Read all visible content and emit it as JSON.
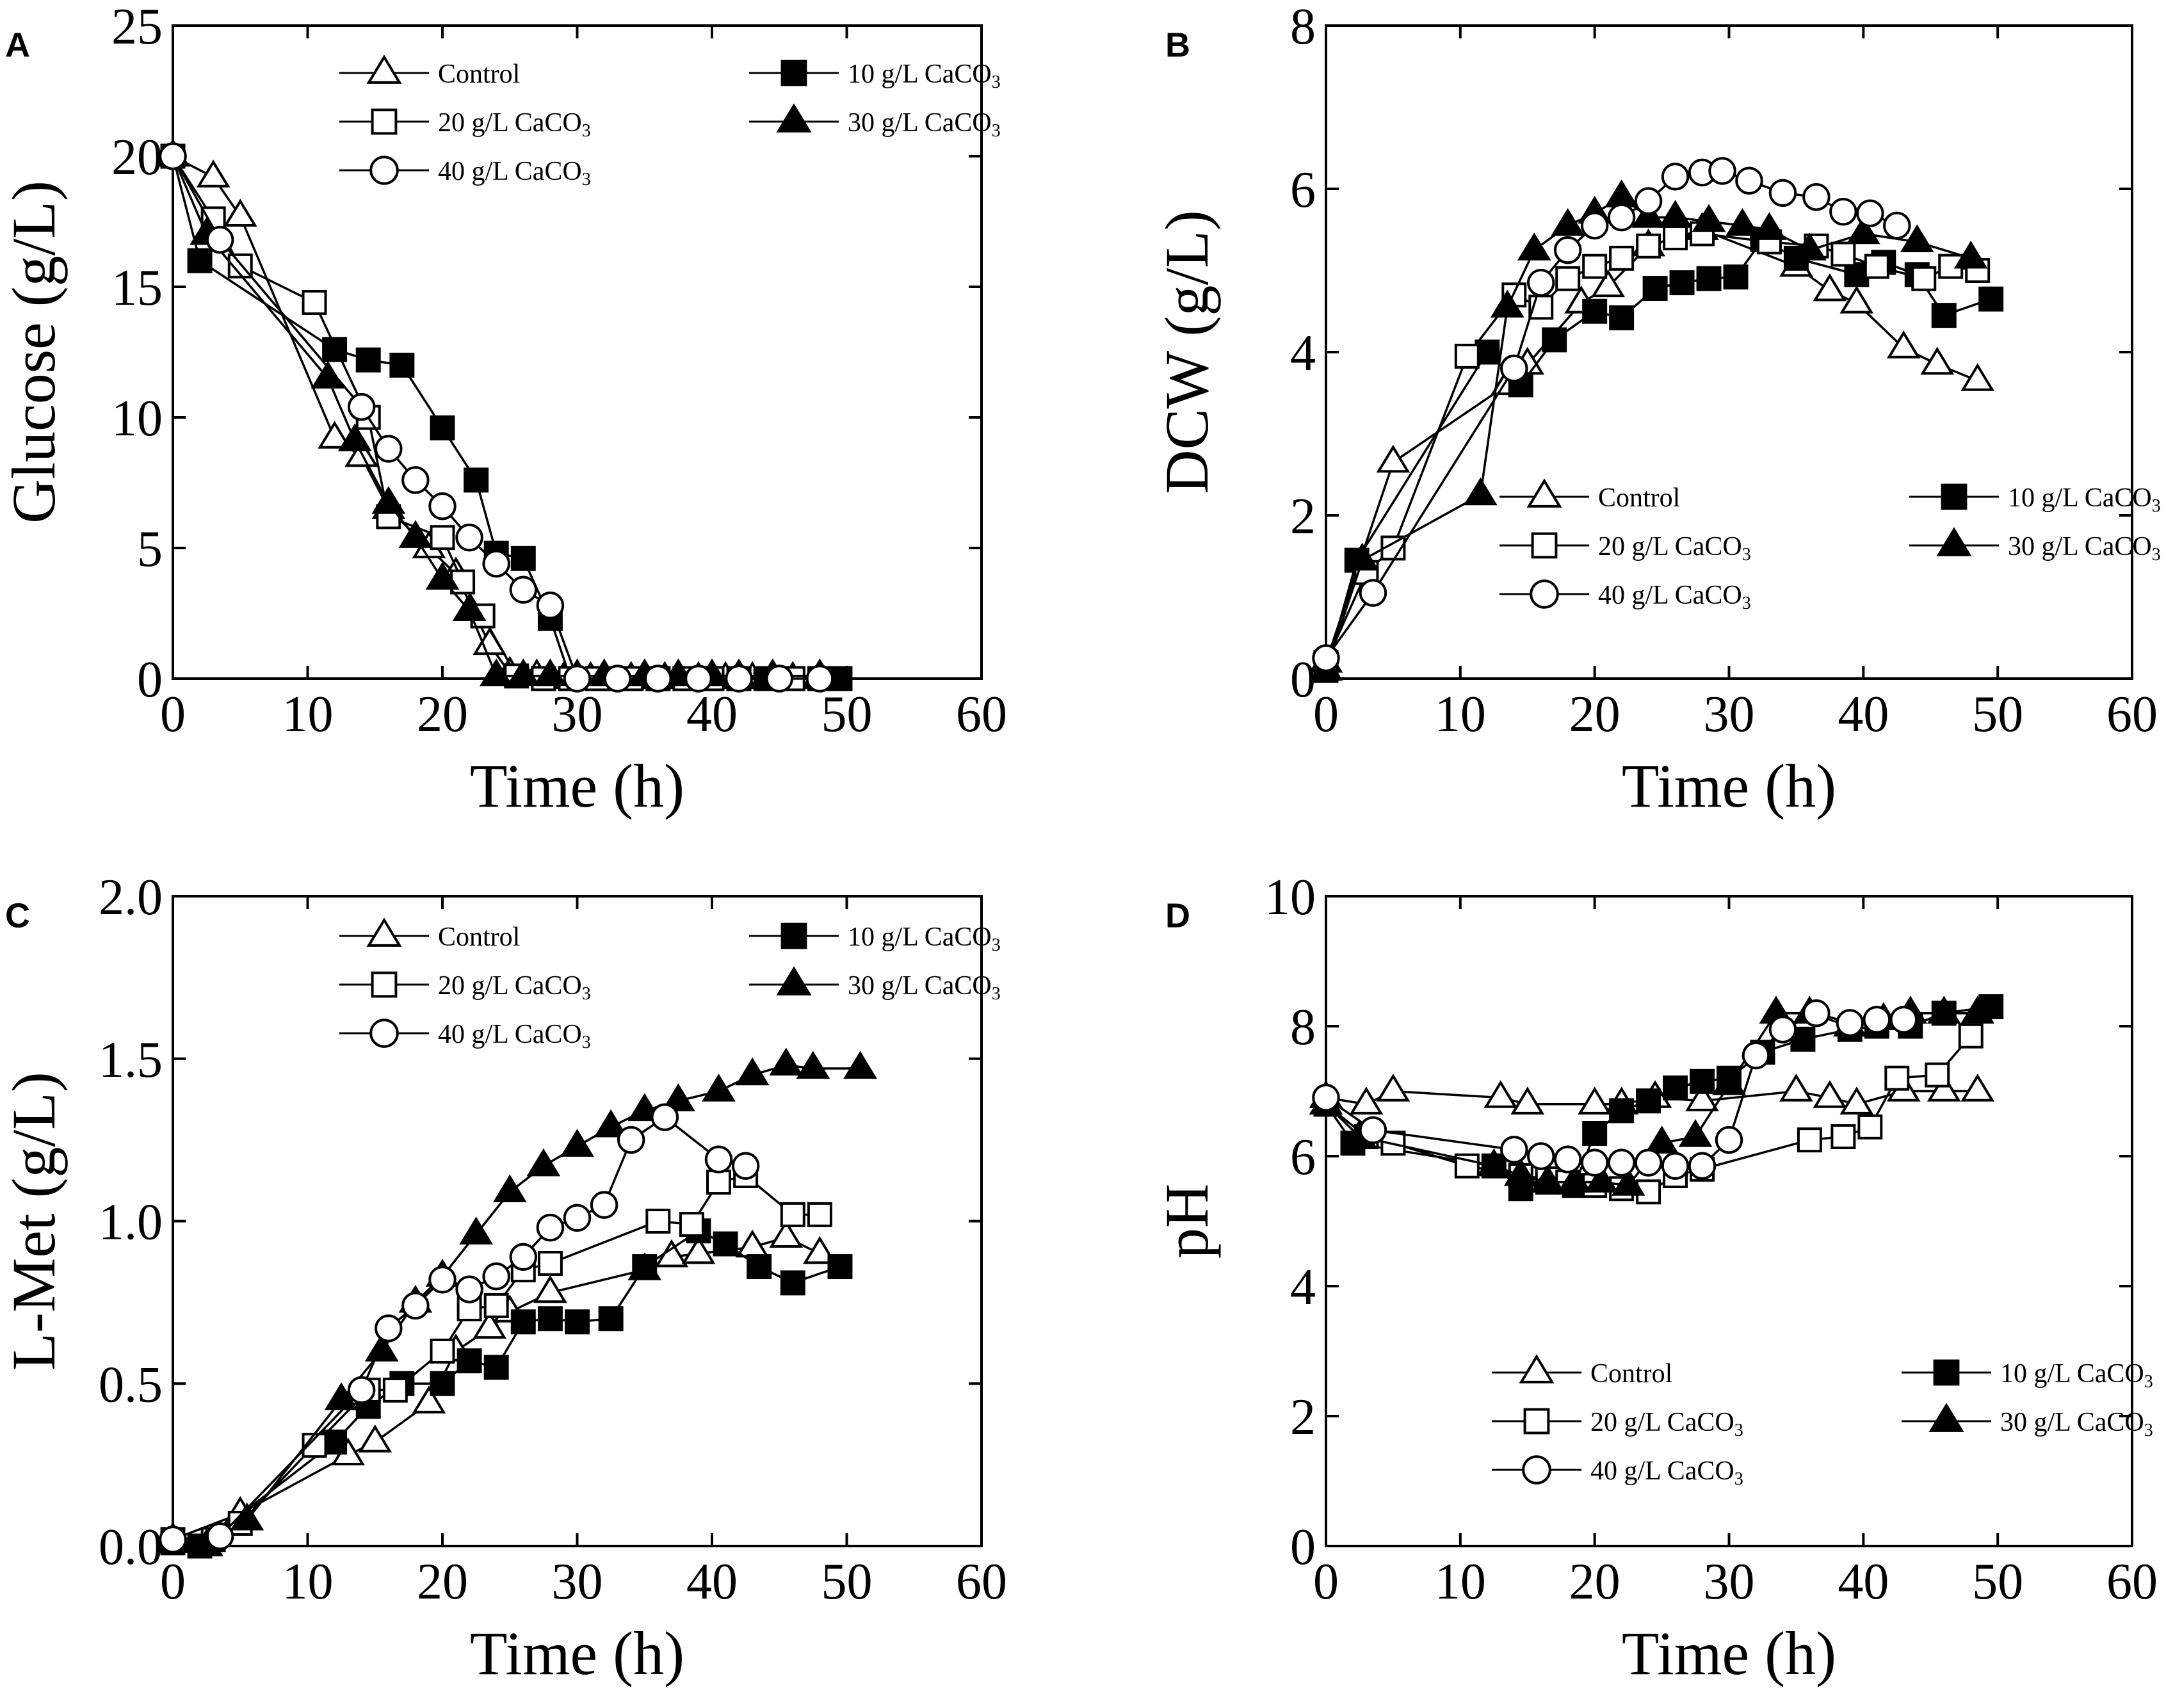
{
  "figure": {
    "series_defs": [
      {
        "key": "control",
        "label": "Control",
        "marker": "triangle",
        "fill": "#ffffff"
      },
      {
        "key": "c10",
        "label": "10 g/L CaCO",
        "subscript": "3",
        "marker": "square",
        "fill": "#000000"
      },
      {
        "key": "c20",
        "label": "20 g/L CaCO",
        "subscript": "3",
        "marker": "square",
        "fill": "#ffffff"
      },
      {
        "key": "c30",
        "label": "30 g/L CaCO",
        "subscript": "3",
        "marker": "triangle",
        "fill": "#000000"
      },
      {
        "key": "c40",
        "label": "40 g/L CaCO",
        "subscript": "3",
        "marker": "circle",
        "fill": "#ffffff"
      }
    ]
  },
  "chart_data": [
    {
      "panel": "A",
      "type": "line",
      "xlabel": "Time (h)",
      "ylabel": "Glucose (g/L)",
      "xlim": [
        0,
        60
      ],
      "ylim": [
        0,
        25
      ],
      "xticks": [
        0,
        10,
        20,
        30,
        40,
        50,
        60
      ],
      "yticks": [
        0,
        5,
        10,
        15,
        20,
        25
      ],
      "legend_position": "top-right",
      "series": [
        {
          "key": "control",
          "name": "Control",
          "x": [
            0,
            3,
            5,
            12,
            14,
            16,
            19,
            21,
            23.5,
            25,
            27,
            29,
            31,
            34,
            36.5,
            39,
            41,
            43,
            46,
            48
          ],
          "y": [
            20,
            19.2,
            17.7,
            9.2,
            8.5,
            6.5,
            5,
            4,
            1.3,
            0.2,
            0.1,
            0,
            0,
            0,
            0,
            0,
            0,
            0,
            0,
            0
          ]
        },
        {
          "key": "c10",
          "name": "10 g/L CaCO3",
          "x": [
            0,
            2,
            12,
            14.5,
            17,
            20,
            22.5,
            24,
            26,
            28,
            29.5,
            32,
            34,
            36,
            38,
            40,
            42,
            44,
            46,
            49.5
          ],
          "y": [
            20,
            16,
            12.6,
            12.2,
            12,
            9.6,
            7.6,
            4.8,
            4.6,
            2.3,
            0,
            0,
            0,
            0,
            0,
            0,
            0,
            0,
            0,
            0
          ]
        },
        {
          "key": "c20",
          "name": "20 g/L CaCO3",
          "x": [
            0,
            3,
            5,
            10.5,
            14.5,
            16,
            20,
            21.5,
            23,
            25.5,
            27.5,
            29.5,
            31.5,
            34,
            36,
            38,
            40,
            42,
            46,
            48
          ],
          "y": [
            20,
            17.6,
            15.8,
            14.4,
            10,
            6.2,
            5.4,
            3.7,
            2.4,
            0.1,
            0,
            0,
            0,
            0,
            0,
            0,
            0,
            0,
            0,
            0
          ]
        },
        {
          "key": "c30",
          "name": "30 g/L CaCO3",
          "x": [
            0,
            2.5,
            11.5,
            13.5,
            16,
            18,
            20,
            22,
            24,
            26,
            28,
            30,
            32,
            35,
            37.5,
            40,
            42,
            44.5,
            48
          ],
          "y": [
            20,
            17,
            11.5,
            9.1,
            6.7,
            5.4,
            3.8,
            2.6,
            0.1,
            0.1,
            0.1,
            0.1,
            0.1,
            0.1,
            0.1,
            0.1,
            0.1,
            0.1,
            0.1
          ]
        },
        {
          "key": "c40",
          "name": "40 g/L CaCO3",
          "x": [
            0,
            3.5,
            14,
            16,
            18,
            20,
            22,
            24,
            26,
            28,
            30,
            33,
            36,
            39,
            42,
            45,
            48
          ],
          "y": [
            20,
            16.8,
            10.4,
            8.8,
            7.6,
            6.6,
            5.4,
            4.4,
            3.4,
            2.8,
            0,
            0,
            0,
            0,
            0,
            0,
            0
          ]
        }
      ]
    },
    {
      "panel": "B",
      "type": "line",
      "xlabel": "Time (h)",
      "ylabel": "DCW (g/L)",
      "xlim": [
        0,
        60
      ],
      "ylim": [
        0,
        8
      ],
      "xticks": [
        0,
        10,
        20,
        30,
        40,
        50,
        60
      ],
      "yticks": [
        0,
        2,
        4,
        6,
        8
      ],
      "legend_position": "bottom-right",
      "series": [
        {
          "key": "control",
          "name": "Control",
          "x": [
            0,
            5,
            13.5,
            15,
            19,
            21,
            24,
            28,
            35,
            37.5,
            39.5,
            43,
            45.5,
            48.5
          ],
          "y": [
            0.2,
            2.65,
            3.6,
            3.85,
            4.6,
            4.8,
            5.3,
            5.5,
            5.05,
            4.75,
            4.6,
            4.05,
            3.85,
            3.65
          ]
        },
        {
          "key": "c10",
          "name": "10 g/L CaCO3",
          "x": [
            0,
            2.3,
            12,
            14.5,
            17,
            20,
            22,
            24.5,
            26.5,
            28.5,
            30.5,
            32.5,
            35,
            39.5,
            41.5,
            44,
            46,
            49.5
          ],
          "y": [
            0.1,
            1.45,
            4,
            3.6,
            4.15,
            4.5,
            4.42,
            4.78,
            4.85,
            4.9,
            4.92,
            5.38,
            5.15,
            4.95,
            5.1,
            4.95,
            4.45,
            4.65
          ]
        },
        {
          "key": "c20",
          "name": "20 g/L CaCO3",
          "x": [
            0,
            3,
            5,
            10.5,
            14,
            16,
            18,
            20,
            22,
            24,
            26,
            28,
            33,
            36.5,
            38.5,
            41,
            44.5,
            46.5,
            48.5
          ],
          "y": [
            0.2,
            1.3,
            1.6,
            3.95,
            4.7,
            4.55,
            4.9,
            5.05,
            5.15,
            5.3,
            5.4,
            5.45,
            5.35,
            5.3,
            5.2,
            5.05,
            4.9,
            5.05,
            5
          ]
        },
        {
          "key": "c30",
          "name": "30 g/L CaCO3",
          "x": [
            0,
            2.7,
            11.5,
            13.5,
            15.5,
            18,
            20,
            22,
            24,
            26,
            28.5,
            31,
            33,
            36,
            40,
            44,
            48
          ],
          "y": [
            0.1,
            1.45,
            2.25,
            4.55,
            5.25,
            5.55,
            5.7,
            5.9,
            5.65,
            5.65,
            5.6,
            5.55,
            5.5,
            5.25,
            5.45,
            5.35,
            5.15
          ]
        },
        {
          "key": "c40",
          "name": "40 g/L CaCO3",
          "x": [
            0,
            3.5,
            14,
            16,
            18,
            20,
            22,
            24,
            26,
            28,
            29.5,
            31.5,
            34,
            36.5,
            38.5,
            40.5,
            42.5
          ],
          "y": [
            0.25,
            1.05,
            3.8,
            4.85,
            5.25,
            5.55,
            5.65,
            5.85,
            6.15,
            6.2,
            6.22,
            6.1,
            5.95,
            5.9,
            5.72,
            5.7,
            5.55
          ]
        }
      ]
    },
    {
      "panel": "C",
      "type": "line",
      "xlabel": "Time (h)",
      "ylabel": "L-Met (g/L)",
      "xlim": [
        0,
        60
      ],
      "ylim": [
        0,
        2.0
      ],
      "xticks": [
        0,
        10,
        20,
        30,
        40,
        50,
        60
      ],
      "yticks": [
        0.0,
        0.5,
        1.0,
        1.5,
        2.0
      ],
      "ytick_labels": [
        "0.0",
        "0.5",
        "1.0",
        "1.5",
        "2.0"
      ],
      "legend_position": "top-right",
      "series": [
        {
          "key": "control",
          "name": "Control",
          "x": [
            0,
            5,
            13,
            15,
            19,
            21,
            23.5,
            25,
            28,
            35,
            37,
            39,
            43,
            45.5,
            48
          ],
          "y": [
            0.02,
            0.1,
            0.28,
            0.32,
            0.44,
            0.6,
            0.67,
            0.72,
            0.78,
            0.85,
            0.89,
            0.9,
            0.92,
            0.95,
            0.9
          ]
        },
        {
          "key": "c10",
          "name": "10 g/L CaCO3",
          "x": [
            0,
            2,
            12,
            14.5,
            17,
            20,
            22,
            24,
            26,
            28,
            30,
            32.5,
            35,
            39,
            41,
            43.5,
            46,
            49.5
          ],
          "y": [
            0.02,
            0,
            0.32,
            0.43,
            0.5,
            0.5,
            0.57,
            0.55,
            0.69,
            0.7,
            0.69,
            0.7,
            0.86,
            0.97,
            0.93,
            0.86,
            0.81,
            0.86
          ]
        },
        {
          "key": "c20",
          "name": "20 g/L CaCO3",
          "x": [
            0,
            3,
            5,
            10.5,
            14.5,
            16.5,
            20,
            22,
            24,
            26,
            28,
            36,
            38.5,
            40.5,
            42.5,
            46,
            48
          ],
          "y": [
            0.01,
            0.02,
            0.07,
            0.31,
            0.48,
            0.48,
            0.6,
            0.73,
            0.74,
            0.85,
            0.87,
            1.0,
            0.99,
            1.12,
            1.14,
            1.02,
            1.02
          ]
        },
        {
          "key": "c30",
          "name": "30 g/L CaCO3",
          "x": [
            0,
            2.5,
            5.5,
            12.5,
            15.5,
            18,
            20,
            22.5,
            25,
            27.5,
            30,
            32.5,
            35,
            37.5,
            40.5,
            43,
            45.5,
            47.5,
            51
          ],
          "y": [
            0.01,
            0,
            0.08,
            0.45,
            0.6,
            0.75,
            0.83,
            0.96,
            1.09,
            1.17,
            1.23,
            1.29,
            1.34,
            1.37,
            1.4,
            1.45,
            1.48,
            1.47,
            1.47
          ]
        },
        {
          "key": "c40",
          "name": "40 g/L CaCO3",
          "x": [
            0,
            3.5,
            14,
            16,
            18,
            20,
            22,
            24,
            26,
            28,
            30,
            32,
            34,
            36.5,
            40.5,
            42.5
          ],
          "y": [
            0.02,
            0.03,
            0.48,
            0.67,
            0.74,
            0.82,
            0.79,
            0.83,
            0.89,
            0.98,
            1.01,
            1.05,
            1.25,
            1.32,
            1.19,
            1.17
          ]
        }
      ]
    },
    {
      "panel": "D",
      "type": "line",
      "xlabel": "Time (h)",
      "ylabel": "pH",
      "xlim": [
        0,
        60
      ],
      "ylim": [
        0,
        10
      ],
      "xticks": [
        0,
        10,
        20,
        30,
        40,
        50,
        60
      ],
      "yticks": [
        0,
        2,
        4,
        6,
        8,
        10
      ],
      "legend_position": "bottom-right",
      "series": [
        {
          "key": "control",
          "name": "Control",
          "x": [
            0,
            3,
            5,
            13,
            15,
            20,
            22,
            24.5,
            28,
            35,
            37.5,
            39.5,
            43,
            46,
            48.5
          ],
          "y": [
            6.9,
            6.8,
            7.0,
            6.9,
            6.8,
            6.8,
            6.8,
            6.9,
            6.85,
            7.0,
            6.9,
            6.8,
            7.0,
            7.0,
            7.0
          ]
        },
        {
          "key": "c10",
          "name": "10 g/L CaCO3",
          "x": [
            0,
            2,
            12.5,
            14.5,
            16.5,
            18.5,
            20,
            22,
            24,
            26,
            28,
            30,
            32.5,
            35.5,
            39,
            41,
            43.5,
            46,
            49.5
          ],
          "y": [
            6.8,
            6.2,
            5.85,
            5.5,
            5.6,
            5.55,
            6.35,
            6.7,
            6.85,
            7.05,
            7.15,
            7.2,
            7.6,
            7.8,
            7.95,
            8.0,
            8.0,
            8.2,
            8.3
          ]
        },
        {
          "key": "c20",
          "name": "20 g/L CaCO3",
          "x": [
            0,
            3,
            5,
            10.5,
            14.5,
            16.5,
            18,
            20,
            22,
            24,
            26,
            28,
            36,
            38.5,
            40.5,
            42.5,
            45.5,
            48
          ],
          "y": [
            6.8,
            6.3,
            6.2,
            5.85,
            5.7,
            5.65,
            5.6,
            5.55,
            5.5,
            5.45,
            5.7,
            5.8,
            6.25,
            6.3,
            6.45,
            7.2,
            7.25,
            7.85
          ]
        },
        {
          "key": "c30",
          "name": "30 g/L CaCO3",
          "x": [
            0,
            2.5,
            12.5,
            14.5,
            16.5,
            18.5,
            20.5,
            22.5,
            25,
            27.5,
            30,
            33.5,
            36,
            39,
            41.5,
            43.5,
            46,
            48.5
          ],
          "y": [
            6.8,
            6.3,
            5.85,
            5.7,
            5.6,
            5.6,
            5.6,
            5.55,
            6.2,
            6.3,
            7.1,
            8.2,
            8.2,
            8.0,
            8.1,
            8.2,
            8.2,
            8.2
          ]
        },
        {
          "key": "c40",
          "name": "40 g/L CaCO3",
          "x": [
            0,
            3.5,
            14,
            16,
            18,
            20,
            22,
            24,
            26,
            28,
            30,
            32,
            34,
            36.5,
            39,
            41,
            43
          ],
          "y": [
            6.9,
            6.4,
            6.1,
            6.0,
            5.95,
            5.9,
            5.9,
            5.9,
            5.85,
            5.85,
            6.25,
            7.55,
            7.95,
            8.2,
            8.05,
            8.1,
            8.1
          ]
        }
      ]
    }
  ]
}
